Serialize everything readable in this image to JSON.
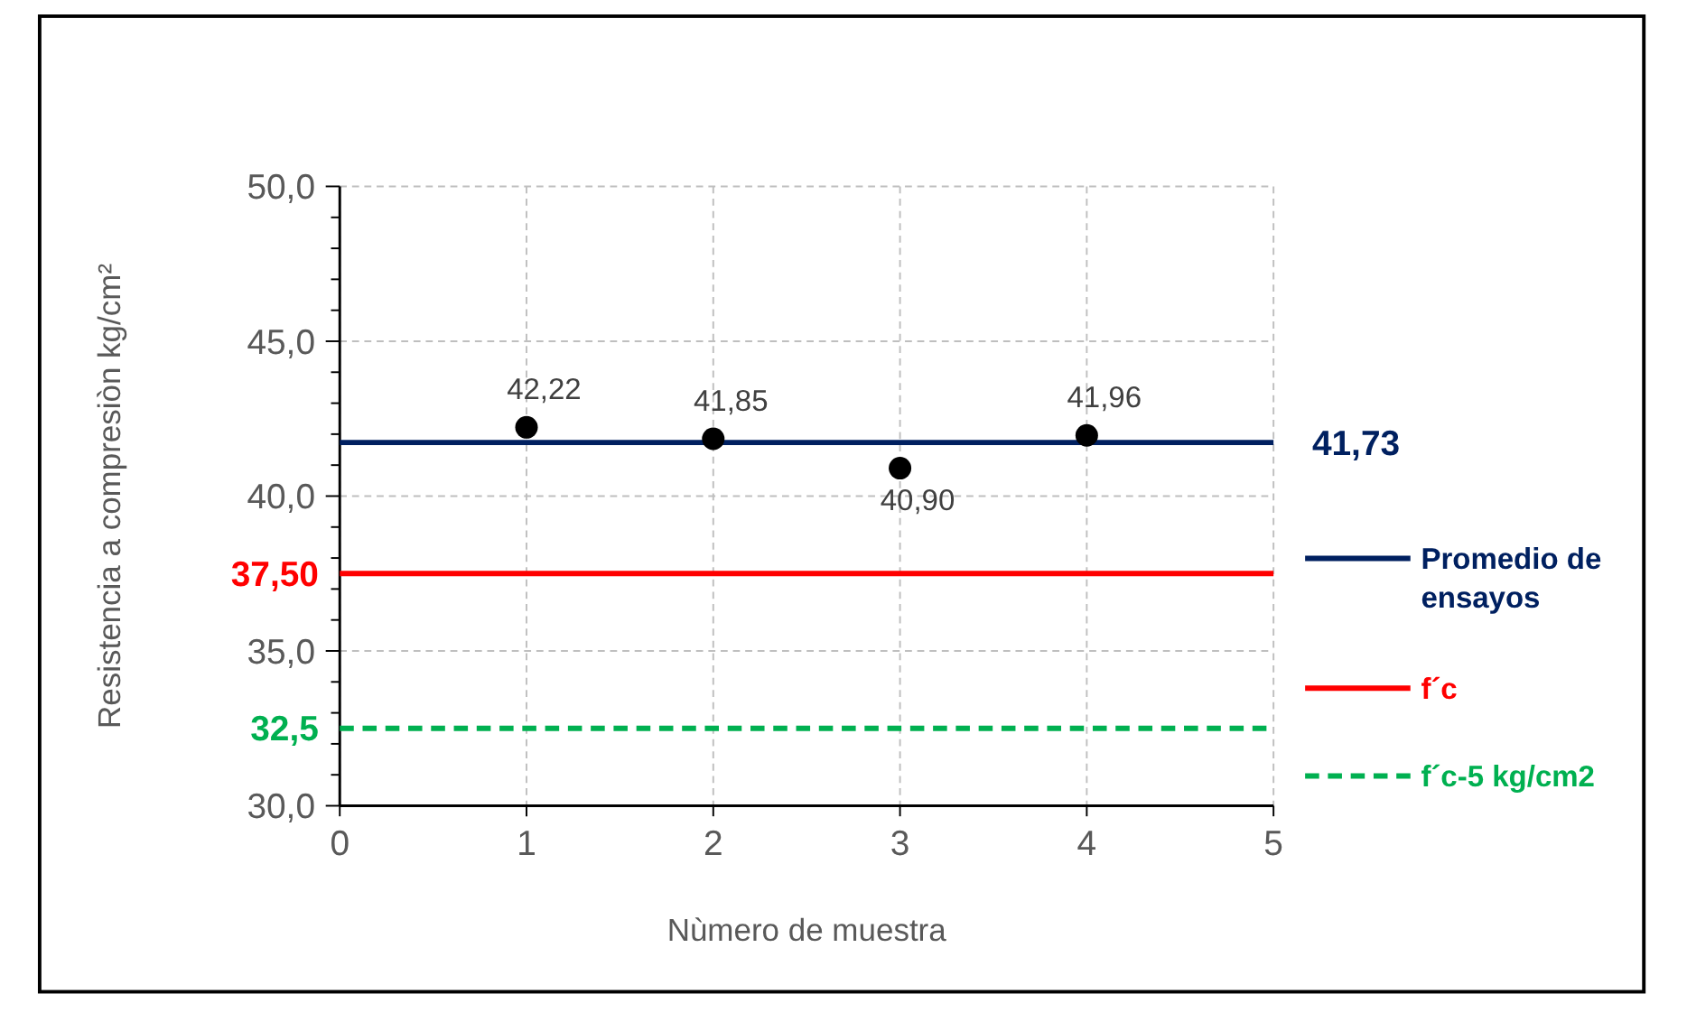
{
  "chart_data": {
    "type": "scatter",
    "xlabel": "Nùmero de muestra",
    "ylabel": "Resistencia a compresiòn kg/cm²",
    "xlim": [
      0,
      5
    ],
    "xticks": [
      0,
      1,
      2,
      3,
      4,
      5
    ],
    "ylim": [
      30,
      50
    ],
    "yticks": [
      {
        "value": 30,
        "label": "30,0"
      },
      {
        "value": 31,
        "label": null
      },
      {
        "value": 32,
        "label": null
      },
      {
        "value": 33,
        "label": null
      },
      {
        "value": 34,
        "label": null
      },
      {
        "value": 35,
        "label": "35,0"
      },
      {
        "value": 36,
        "label": null
      },
      {
        "value": 37,
        "label": null
      },
      {
        "value": 38,
        "label": null
      },
      {
        "value": 39,
        "label": null
      },
      {
        "value": 40,
        "label": "40,0"
      },
      {
        "value": 41,
        "label": null
      },
      {
        "value": 42,
        "label": null
      },
      {
        "value": 43,
        "label": null
      },
      {
        "value": 44,
        "label": null
      },
      {
        "value": 45,
        "label": "45,0"
      },
      {
        "value": 46,
        "label": null
      },
      {
        "value": 47,
        "label": null
      },
      {
        "value": 48,
        "label": null
      },
      {
        "value": 49,
        "label": null
      },
      {
        "value": 50,
        "label": "50,0"
      }
    ],
    "grid": true,
    "legend": "right",
    "series": [
      {
        "marker": "circle",
        "color": "#000000",
        "x": [
          1,
          2,
          3,
          4
        ],
        "values": [
          42.22,
          41.85,
          40.9,
          41.96
        ],
        "value_labels": [
          "42,22",
          "41,85",
          "40,90",
          "41,96"
        ]
      },
      {
        "type": "line",
        "name": "Promedio de ensayos",
        "color": "#002060",
        "x": [
          0,
          5
        ],
        "values": [
          41.73,
          41.73
        ],
        "value_labels": [
          null,
          "41,73"
        ],
        "line_style": "solid",
        "marker": "none"
      },
      {
        "type": "line",
        "name": "f´c",
        "color": "#ff0000",
        "x": [
          0,
          5
        ],
        "values": [
          37.5,
          37.5
        ],
        "value_labels": [
          "37,50",
          null
        ],
        "line_style": "solid",
        "marker": "none"
      },
      {
        "type": "line",
        "name": "f´c-5 kg/cm2",
        "color": "#00b050",
        "x": [
          0,
          5
        ],
        "values": [
          32.5,
          32.5
        ],
        "value_labels": [
          "32,5",
          null
        ],
        "line_style": "dashed",
        "marker": "none"
      }
    ]
  }
}
